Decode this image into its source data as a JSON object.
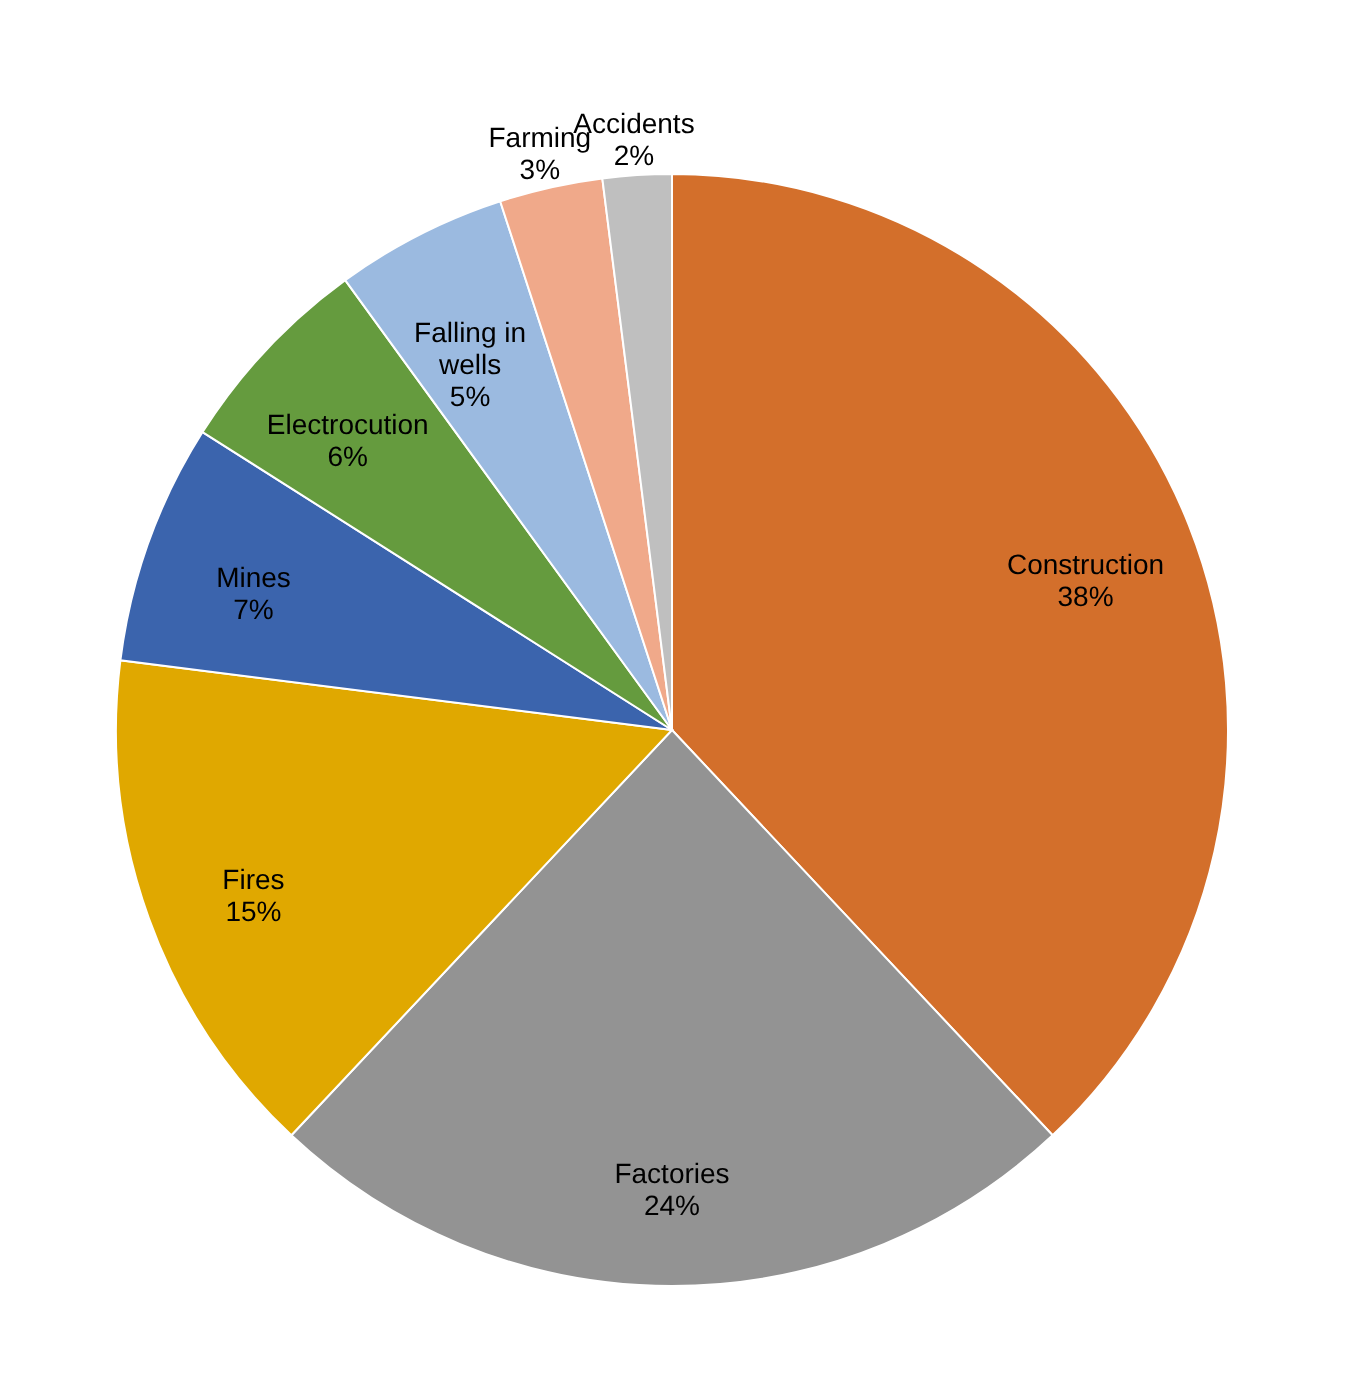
{
  "chart_data": {
    "type": "pie",
    "categories": [
      "Construction",
      "Factories",
      "Fires",
      "Mines",
      "Electrocution",
      "Falling in wells",
      "Farming",
      "Accidents"
    ],
    "values": [
      38,
      24,
      15,
      7,
      6,
      5,
      3,
      2
    ],
    "value_labels": [
      "38%",
      "24%",
      "15%",
      "7%",
      "6%",
      "5%",
      "3%",
      "2%"
    ],
    "colors": [
      "#d36f2b",
      "#939393",
      "#e0a800",
      "#3b64ad",
      "#659b3e",
      "#9bbae0",
      "#f0a98a",
      "#bfbfbf"
    ]
  }
}
